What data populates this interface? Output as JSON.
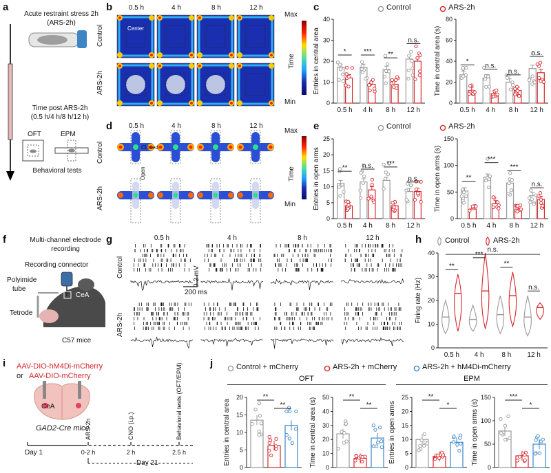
{
  "panels": {
    "a": {
      "label": "a",
      "stress_title": "Acute restraint stress 2h",
      "stress_sub": "(ARS-2h)",
      "time_title": "Time post ARS-2h",
      "time_sub": "(0.5 h/4 h/8 h/12 h)",
      "oft": "OFT",
      "epm": "EPM",
      "behavior": "Behavioral tests"
    },
    "b": {
      "label": "b",
      "times": [
        "0.5 h",
        "4 h",
        "8 h",
        "12 h"
      ],
      "rows": [
        "Control",
        "ARS-2h"
      ],
      "center": "Center",
      "scale_max": "Max",
      "scale_min": "Min",
      "scale_label": "Time"
    },
    "c": {
      "label": "c",
      "legend_control": "Control",
      "legend_ars": "ARS-2h"
    },
    "d": {
      "label": "d",
      "times": [
        "0.5 h",
        "4 h",
        "8 h",
        "12 h"
      ],
      "rows": [
        "Control",
        "ARS-2h"
      ],
      "closed": "Closed",
      "open": "Open",
      "scale_max": "Max",
      "scale_min": "Min",
      "scale_label": "Time"
    },
    "e": {
      "label": "e",
      "legend_control": "Control",
      "legend_ars": "ARS-2h"
    },
    "f": {
      "label": "f",
      "title1": "Multi-channel electrode",
      "title2": "recording",
      "connector": "Recording connector",
      "tube1": "Polyimide",
      "tube2": "tube",
      "cea": "CeA",
      "tetrode": "Tetrode",
      "mice": "C57 mice"
    },
    "g": {
      "label": "g",
      "times": [
        "0.5 h",
        "4 h",
        "8 h",
        "12 h"
      ],
      "rows": [
        "Control",
        "ARS-2h"
      ],
      "scale_v": "0.2 mV",
      "scale_t": "200 ms"
    },
    "h": {
      "label": "h",
      "legend_control": "Control",
      "legend_ars": "ARS-2h"
    },
    "i": {
      "label": "i",
      "virus1": "AAV-DIO-hM4Di-mCherry",
      "virus_or": "or",
      "virus2": "AAV-DIO-mCherry",
      "cea": "CeA",
      "mice": "GAD2-Cre mice",
      "day1": "Day 1",
      "day21": "Day 21",
      "steps": [
        "ARS-2h",
        "CNO (i.p.)",
        "Behavioral tests (OFT/EPM)"
      ],
      "step_times": [
        "0-2 h",
        "2 h",
        "2.5 h"
      ]
    },
    "j": {
      "label": "j",
      "legend": [
        "Control + mCherry",
        "ARS-2h + mCherry",
        "ARS-2h + hM4Di-mCherry"
      ],
      "oft": "OFT",
      "epm": "EPM"
    }
  },
  "colors": {
    "control": "#9a9a9a",
    "ars": "#d7262c",
    "hm4di": "#3b86c8"
  },
  "chart_data": [
    {
      "id": "c-left",
      "type": "bar",
      "categories": [
        "0.5 h",
        "4 h",
        "8 h",
        "12 h"
      ],
      "series": [
        {
          "name": "Control",
          "values": [
            17,
            17,
            16,
            21
          ]
        },
        {
          "name": "ARS-2h",
          "values": [
            12,
            9,
            9,
            20
          ]
        }
      ],
      "ylabel": "Entries in central area",
      "ylim": [
        0,
        40
      ],
      "yticks": [
        0,
        10,
        20,
        30,
        40
      ],
      "significance": [
        "*",
        "***",
        "**",
        "n.s."
      ]
    },
    {
      "id": "c-right",
      "type": "bar",
      "categories": [
        "0.5 h",
        "4 h",
        "8 h",
        "12 h"
      ],
      "series": [
        {
          "name": "Control",
          "values": [
            27,
            24,
            20,
            33
          ]
        },
        {
          "name": "ARS-2h",
          "values": [
            12,
            9,
            12,
            29
          ]
        }
      ],
      "ylabel": "Time in central area (s)",
      "ylim": [
        0,
        80
      ],
      "yticks": [
        0,
        20,
        40,
        60,
        80
      ],
      "significance": [
        "*",
        "n.s.",
        "n.s.",
        "n.s."
      ]
    },
    {
      "id": "e-left",
      "type": "bar",
      "categories": [
        "0.5 h",
        "4 h",
        "8 h",
        "12 h"
      ],
      "series": [
        {
          "name": "Control",
          "values": [
            11,
            11.5,
            12,
            8.5
          ]
        },
        {
          "name": "ARS-2h",
          "values": [
            4,
            9,
            4,
            8.5
          ]
        }
      ],
      "ylabel": "Entries in open arms",
      "ylim": [
        0,
        25
      ],
      "yticks": [
        0,
        5,
        10,
        15,
        20,
        25
      ],
      "significance": [
        "**",
        "n.s.",
        "***",
        "n.s."
      ]
    },
    {
      "id": "e-right",
      "type": "bar",
      "categories": [
        "0.5 h",
        "4 h",
        "8 h",
        "12 h"
      ],
      "series": [
        {
          "name": "Control",
          "values": [
            52,
            78,
            67,
            43
          ]
        },
        {
          "name": "ARS-2h",
          "values": [
            18,
            28,
            18,
            36
          ]
        }
      ],
      "ylabel": "Time in open arms (s)",
      "ylim": [
        0,
        150
      ],
      "yticks": [
        0,
        50,
        100,
        150
      ],
      "significance": [
        "**",
        "***",
        "***",
        "n.s."
      ]
    },
    {
      "id": "h",
      "type": "violin",
      "categories": [
        "0.5 h",
        "4 h",
        "8 h",
        "12 h"
      ],
      "series": [
        {
          "name": "Control",
          "medians": [
            13,
            12,
            14,
            13
          ],
          "ranges": [
            [
              6,
              20
            ],
            [
              7,
              18
            ],
            [
              6,
              22
            ],
            [
              5,
              22
            ]
          ]
        },
        {
          "name": "ARS-2h",
          "medians": [
            23,
            24,
            22,
            17
          ],
          "ranges": [
            [
              7,
              31
            ],
            [
              8,
              40
            ],
            [
              9,
              32
            ],
            [
              12,
              19
            ]
          ]
        }
      ],
      "ylabel": "Firing rate (Hz)",
      "ylim": [
        0,
        40
      ],
      "yticks": [
        0,
        10,
        20,
        30,
        40
      ],
      "significance": [
        "**",
        "***",
        "**",
        "n.s."
      ],
      "overall": "n.s."
    },
    {
      "id": "j1",
      "type": "bar",
      "group": "OFT",
      "categories": [
        "Control + mCherry",
        "ARS-2h + mCherry",
        "ARS-2h + hM4Di-mCherry"
      ],
      "values": [
        13.5,
        6.2,
        12
      ],
      "ylabel": "Entries in central area",
      "ylim": [
        0,
        20
      ],
      "yticks": [
        0,
        5,
        10,
        15,
        20
      ],
      "significance": [
        {
          "pair": [
            0,
            1
          ],
          "mark": "**"
        },
        {
          "pair": [
            1,
            2
          ],
          "mark": "**"
        }
      ]
    },
    {
      "id": "j2",
      "type": "bar",
      "group": "OFT",
      "categories": [
        "Control + mCherry",
        "ARS-2h + mCherry",
        "ARS-2h + hM4Di-mCherry"
      ],
      "values": [
        24,
        6.5,
        21
      ],
      "ylabel": "Time in central area (s)",
      "ylim": [
        0,
        50
      ],
      "yticks": [
        0,
        10,
        20,
        30,
        40,
        50
      ],
      "significance": [
        {
          "pair": [
            0,
            1
          ],
          "mark": "**"
        },
        {
          "pair": [
            1,
            2
          ],
          "mark": "**"
        }
      ]
    },
    {
      "id": "j3",
      "type": "bar",
      "group": "EPM",
      "categories": [
        "Control + mCherry",
        "ARS-2h + mCherry",
        "ARS-2h + hM4Di-mCherry"
      ],
      "values": [
        10,
        4,
        9
      ],
      "ylabel": "Entries in open arms",
      "ylim": [
        0,
        25
      ],
      "yticks": [
        0,
        5,
        10,
        15,
        20,
        25
      ],
      "significance": [
        {
          "pair": [
            0,
            1
          ],
          "mark": "**"
        },
        {
          "pair": [
            1,
            2
          ],
          "mark": "*"
        }
      ]
    },
    {
      "id": "j4",
      "type": "bar",
      "group": "EPM",
      "categories": [
        "Control + mCherry",
        "ARS-2h + mCherry",
        "ARS-2h + hM4Di-mCherry"
      ],
      "values": [
        78,
        25,
        50
      ],
      "ylabel": "Time in open arms (s)",
      "ylim": [
        0,
        150
      ],
      "yticks": [
        0,
        50,
        100,
        150
      ],
      "significance": [
        {
          "pair": [
            0,
            1
          ],
          "mark": "***"
        },
        {
          "pair": [
            1,
            2
          ],
          "mark": "*"
        }
      ]
    }
  ]
}
